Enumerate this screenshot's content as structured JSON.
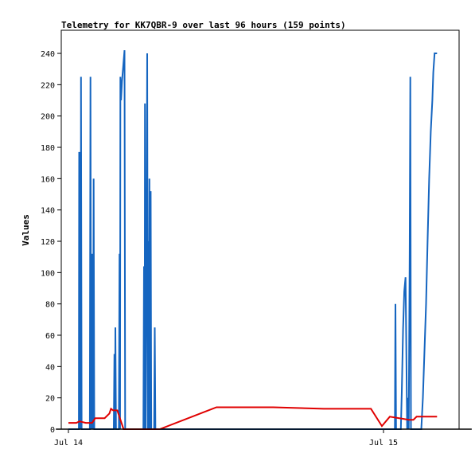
{
  "chart_data": {
    "type": "line",
    "title": "Telemetry for KK7QBR-9 over last 96 hours (159 points)",
    "xlabel": "",
    "ylabel": "Values",
    "ylim": [
      0,
      250
    ],
    "xlim": [
      -0.4,
      12.8
    ],
    "yticks": [
      0,
      20,
      40,
      60,
      80,
      100,
      120,
      140,
      160,
      180,
      200,
      220,
      240
    ],
    "xticks": [
      {
        "x": 0,
        "label": "Jul 14"
      },
      {
        "x": 10,
        "label": "Jul 15"
      }
    ],
    "grid": false,
    "legend": "none",
    "series": [
      {
        "color": "#1565c0",
        "points": [
          [
            0.0,
            0
          ],
          [
            0.33,
            0
          ],
          [
            0.34,
            177
          ],
          [
            0.36,
            0
          ],
          [
            0.37,
            177
          ],
          [
            0.39,
            0
          ],
          [
            0.4,
            225
          ],
          [
            0.42,
            0
          ],
          [
            0.68,
            0
          ],
          [
            0.7,
            225
          ],
          [
            0.72,
            0
          ],
          [
            0.73,
            89
          ],
          [
            0.75,
            0
          ],
          [
            0.76,
            112
          ],
          [
            0.78,
            0
          ],
          [
            0.8,
            160
          ],
          [
            0.82,
            0
          ],
          [
            1.44,
            0
          ],
          [
            1.46,
            48
          ],
          [
            1.48,
            0
          ],
          [
            1.49,
            65
          ],
          [
            1.51,
            0
          ],
          [
            1.6,
            0
          ],
          [
            1.62,
            112
          ],
          [
            1.64,
            0
          ],
          [
            1.65,
            225
          ],
          [
            1.67,
            210
          ],
          [
            1.7,
            222
          ],
          [
            1.74,
            232
          ],
          [
            1.78,
            242
          ],
          [
            1.8,
            0
          ],
          [
            2.38,
            0
          ],
          [
            2.4,
            104
          ],
          [
            2.42,
            0
          ],
          [
            2.43,
            208
          ],
          [
            2.45,
            0
          ],
          [
            2.48,
            120
          ],
          [
            2.5,
            240
          ],
          [
            2.52,
            0
          ],
          [
            2.53,
            120
          ],
          [
            2.55,
            0
          ],
          [
            2.57,
            160
          ],
          [
            2.59,
            0
          ],
          [
            2.61,
            152
          ],
          [
            2.63,
            0
          ],
          [
            2.72,
            0
          ],
          [
            2.74,
            65
          ],
          [
            2.76,
            0
          ],
          [
            10.0,
            0
          ],
          [
            10.36,
            0
          ],
          [
            10.38,
            80
          ],
          [
            10.4,
            0
          ],
          [
            10.55,
            0
          ],
          [
            10.58,
            24
          ],
          [
            10.62,
            64
          ],
          [
            10.66,
            88
          ],
          [
            10.7,
            97
          ],
          [
            10.72,
            60
          ],
          [
            10.75,
            0
          ],
          [
            10.78,
            20
          ],
          [
            10.8,
            0
          ],
          [
            10.83,
            112
          ],
          [
            10.85,
            225
          ],
          [
            10.87,
            0
          ],
          [
            11.2,
            0
          ],
          [
            11.25,
            20
          ],
          [
            11.3,
            50
          ],
          [
            11.35,
            80
          ],
          [
            11.4,
            120
          ],
          [
            11.45,
            160
          ],
          [
            11.5,
            190
          ],
          [
            11.55,
            210
          ],
          [
            11.58,
            228
          ],
          [
            11.62,
            240
          ],
          [
            11.7,
            240
          ]
        ]
      },
      {
        "color": "#e00000",
        "points": [
          [
            0.0,
            4
          ],
          [
            0.25,
            4
          ],
          [
            0.35,
            5
          ],
          [
            0.55,
            4
          ],
          [
            0.75,
            4
          ],
          [
            0.85,
            7
          ],
          [
            1.0,
            7
          ],
          [
            1.15,
            7
          ],
          [
            1.3,
            10
          ],
          [
            1.35,
            13
          ],
          [
            1.42,
            12
          ],
          [
            1.55,
            12
          ],
          [
            1.75,
            0
          ],
          [
            2.9,
            0
          ],
          [
            4.7,
            14
          ],
          [
            5.5,
            14
          ],
          [
            6.5,
            14
          ],
          [
            8.1,
            13
          ],
          [
            9.6,
            13
          ],
          [
            9.95,
            2
          ],
          [
            10.2,
            8
          ],
          [
            10.5,
            7
          ],
          [
            10.8,
            6
          ],
          [
            10.95,
            6
          ],
          [
            11.05,
            8
          ],
          [
            11.4,
            8
          ],
          [
            11.7,
            8
          ]
        ]
      },
      {
        "color": "#000000",
        "points": [
          [
            -0.4,
            0
          ],
          [
            12.8,
            0
          ]
        ]
      }
    ]
  }
}
